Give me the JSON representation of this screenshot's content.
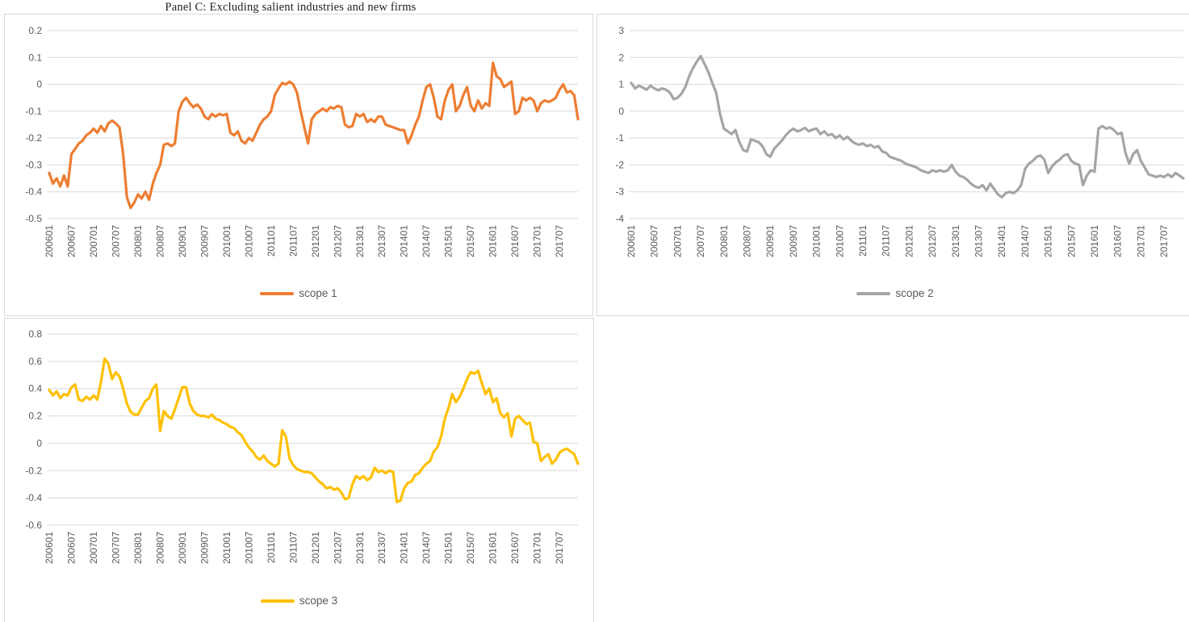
{
  "page": {
    "title": "Panel C: Excluding salient industries and new firms"
  },
  "chart_data": [
    {
      "type": "line",
      "grid": true,
      "legend_position": "bottom",
      "ylim": [
        -0.5,
        0.2
      ],
      "y_tick_values": [
        0.2,
        0.1,
        0,
        -0.1,
        -0.2,
        -0.3,
        -0.4,
        -0.5
      ],
      "y_tick_labels": [
        "0.2",
        "0.1",
        "0",
        "-0.1",
        "-0.2",
        "-0.3",
        "-0.4",
        "-0.5"
      ],
      "x_tick_every": 6,
      "x_tick_labels": [
        "200601",
        "200607",
        "200701",
        "200707",
        "200801",
        "200807",
        "200901",
        "200907",
        "201001",
        "201007",
        "201101",
        "201107",
        "201201",
        "201207",
        "201301",
        "201307",
        "201401",
        "201407",
        "201501",
        "201507",
        "201601",
        "201607",
        "201701",
        "201707"
      ],
      "series": [
        {
          "name": "scope 1",
          "color": "#ED7D31",
          "values": [
            -0.33,
            -0.37,
            -0.35,
            -0.38,
            -0.34,
            -0.38,
            -0.26,
            -0.24,
            -0.22,
            -0.21,
            -0.19,
            -0.18,
            -0.165,
            -0.18,
            -0.155,
            -0.175,
            -0.145,
            -0.135,
            -0.145,
            -0.16,
            -0.26,
            -0.42,
            -0.46,
            -0.44,
            -0.41,
            -0.425,
            -0.4,
            -0.43,
            -0.37,
            -0.33,
            -0.3,
            -0.225,
            -0.22,
            -0.23,
            -0.22,
            -0.1,
            -0.065,
            -0.05,
            -0.07,
            -0.085,
            -0.075,
            -0.09,
            -0.12,
            -0.13,
            -0.11,
            -0.12,
            -0.11,
            -0.115,
            -0.11,
            -0.18,
            -0.19,
            -0.175,
            -0.21,
            -0.22,
            -0.2,
            -0.21,
            -0.18,
            -0.15,
            -0.13,
            -0.12,
            -0.1,
            -0.04,
            -0.015,
            0.005,
            0.0,
            0.01,
            0.0,
            -0.03,
            -0.1,
            -0.16,
            -0.22,
            -0.13,
            -0.11,
            -0.1,
            -0.09,
            -0.1,
            -0.085,
            -0.09,
            -0.08,
            -0.085,
            -0.15,
            -0.16,
            -0.155,
            -0.11,
            -0.12,
            -0.11,
            -0.14,
            -0.13,
            -0.14,
            -0.12,
            -0.12,
            -0.15,
            -0.155,
            -0.16,
            -0.165,
            -0.17,
            -0.17,
            -0.22,
            -0.19,
            -0.15,
            -0.12,
            -0.06,
            -0.01,
            0.0,
            -0.05,
            -0.12,
            -0.13,
            -0.06,
            -0.02,
            0.0,
            -0.1,
            -0.08,
            -0.04,
            -0.01,
            -0.08,
            -0.1,
            -0.06,
            -0.09,
            -0.07,
            -0.08,
            0.08,
            0.03,
            0.02,
            -0.01,
            0.0,
            0.01,
            -0.11,
            -0.1,
            -0.05,
            -0.06,
            -0.05,
            -0.06,
            -0.1,
            -0.07,
            -0.06,
            -0.065,
            -0.06,
            -0.05,
            -0.02,
            0.0,
            -0.03,
            -0.025,
            -0.04,
            -0.13
          ]
        }
      ]
    },
    {
      "type": "line",
      "grid": true,
      "legend_position": "bottom",
      "ylim": [
        -4,
        3
      ],
      "y_tick_values": [
        3,
        2,
        1,
        0,
        -1,
        -2,
        -3,
        -4
      ],
      "y_tick_labels": [
        "3",
        "2",
        "1",
        "0",
        "-1",
        "-2",
        "-3",
        "-4"
      ],
      "x_tick_every": 6,
      "x_tick_labels": [
        "200601",
        "200607",
        "200701",
        "200707",
        "200801",
        "200807",
        "200901",
        "200907",
        "201001",
        "201007",
        "201101",
        "201107",
        "201201",
        "201207",
        "201301",
        "201307",
        "201401",
        "201407",
        "201501",
        "201507",
        "201601",
        "201607",
        "201701",
        "201707"
      ],
      "series": [
        {
          "name": "scope 2",
          "color": "#A5A5A5",
          "values": [
            1.05,
            0.85,
            0.95,
            0.88,
            0.8,
            0.95,
            0.85,
            0.78,
            0.85,
            0.8,
            0.7,
            0.45,
            0.5,
            0.65,
            0.9,
            1.3,
            1.6,
            1.85,
            2.05,
            1.75,
            1.45,
            1.05,
            0.7,
            -0.1,
            -0.65,
            -0.75,
            -0.85,
            -0.7,
            -1.15,
            -1.45,
            -1.5,
            -1.05,
            -1.1,
            -1.15,
            -1.3,
            -1.6,
            -1.7,
            -1.4,
            -1.25,
            -1.1,
            -0.9,
            -0.75,
            -0.65,
            -0.75,
            -0.7,
            -0.62,
            -0.75,
            -0.68,
            -0.65,
            -0.85,
            -0.75,
            -0.9,
            -0.85,
            -1.0,
            -0.9,
            -1.05,
            -0.95,
            -1.1,
            -1.2,
            -1.25,
            -1.2,
            -1.3,
            -1.25,
            -1.35,
            -1.3,
            -1.5,
            -1.55,
            -1.7,
            -1.75,
            -1.8,
            -1.85,
            -1.95,
            -2.0,
            -2.05,
            -2.1,
            -2.2,
            -2.25,
            -2.3,
            -2.2,
            -2.25,
            -2.2,
            -2.25,
            -2.2,
            -2.0,
            -2.25,
            -2.4,
            -2.45,
            -2.55,
            -2.7,
            -2.8,
            -2.85,
            -2.75,
            -2.95,
            -2.7,
            -2.9,
            -3.1,
            -3.2,
            -3.05,
            -3.0,
            -3.05,
            -2.95,
            -2.75,
            -2.15,
            -1.95,
            -1.85,
            -1.7,
            -1.65,
            -1.8,
            -2.3,
            -2.05,
            -1.9,
            -1.8,
            -1.65,
            -1.6,
            -1.85,
            -1.95,
            -2.0,
            -2.75,
            -2.4,
            -2.2,
            -2.25,
            -0.65,
            -0.55,
            -0.65,
            -0.6,
            -0.7,
            -0.85,
            -0.8,
            -1.55,
            -1.95,
            -1.6,
            -1.45,
            -1.85,
            -2.1,
            -2.35,
            -2.4,
            -2.45,
            -2.4,
            -2.45,
            -2.35,
            -2.45,
            -2.3,
            -2.4,
            -2.5
          ]
        }
      ]
    },
    {
      "type": "line",
      "grid": true,
      "legend_position": "bottom",
      "ylim": [
        -0.6,
        0.8
      ],
      "y_tick_values": [
        0.8,
        0.6,
        0.4,
        0.2,
        0,
        -0.2,
        -0.4,
        -0.6
      ],
      "y_tick_labels": [
        "0.8",
        "0.6",
        "0.4",
        "0.2",
        "0",
        "-0.2",
        "-0.4",
        "-0.6"
      ],
      "x_tick_every": 6,
      "x_tick_labels": [
        "200601",
        "200607",
        "200701",
        "200707",
        "200801",
        "200807",
        "200901",
        "200907",
        "201001",
        "201007",
        "201101",
        "201107",
        "201201",
        "201207",
        "201301",
        "201307",
        "201401",
        "201407",
        "201501",
        "201507",
        "201601",
        "201607",
        "201701",
        "201707"
      ],
      "series": [
        {
          "name": "scope 3",
          "color": "#FFC000",
          "values": [
            0.39,
            0.35,
            0.38,
            0.33,
            0.36,
            0.35,
            0.41,
            0.43,
            0.32,
            0.31,
            0.34,
            0.32,
            0.35,
            0.32,
            0.45,
            0.62,
            0.58,
            0.47,
            0.52,
            0.49,
            0.4,
            0.29,
            0.23,
            0.21,
            0.21,
            0.26,
            0.31,
            0.33,
            0.4,
            0.43,
            0.09,
            0.235,
            0.2,
            0.18,
            0.25,
            0.33,
            0.41,
            0.41,
            0.29,
            0.235,
            0.21,
            0.2,
            0.2,
            0.19,
            0.21,
            0.18,
            0.17,
            0.15,
            0.14,
            0.12,
            0.11,
            0.08,
            0.06,
            0.01,
            -0.03,
            -0.06,
            -0.1,
            -0.12,
            -0.09,
            -0.13,
            -0.15,
            -0.17,
            -0.15,
            0.095,
            0.05,
            -0.11,
            -0.16,
            -0.19,
            -0.2,
            -0.21,
            -0.21,
            -0.22,
            -0.25,
            -0.28,
            -0.3,
            -0.33,
            -0.32,
            -0.34,
            -0.33,
            -0.36,
            -0.41,
            -0.4,
            -0.3,
            -0.24,
            -0.26,
            -0.24,
            -0.27,
            -0.25,
            -0.18,
            -0.21,
            -0.2,
            -0.22,
            -0.2,
            -0.21,
            -0.43,
            -0.42,
            -0.33,
            -0.29,
            -0.28,
            -0.23,
            -0.22,
            -0.18,
            -0.15,
            -0.13,
            -0.06,
            -0.03,
            0.05,
            0.18,
            0.26,
            0.36,
            0.3,
            0.34,
            0.4,
            0.47,
            0.52,
            0.51,
            0.53,
            0.44,
            0.36,
            0.4,
            0.3,
            0.33,
            0.22,
            0.19,
            0.22,
            0.05,
            0.18,
            0.2,
            0.17,
            0.14,
            0.15,
            0.01,
            0.0,
            -0.13,
            -0.1,
            -0.08,
            -0.15,
            -0.12,
            -0.07,
            -0.05,
            -0.04,
            -0.06,
            -0.08,
            -0.15
          ]
        }
      ]
    }
  ]
}
